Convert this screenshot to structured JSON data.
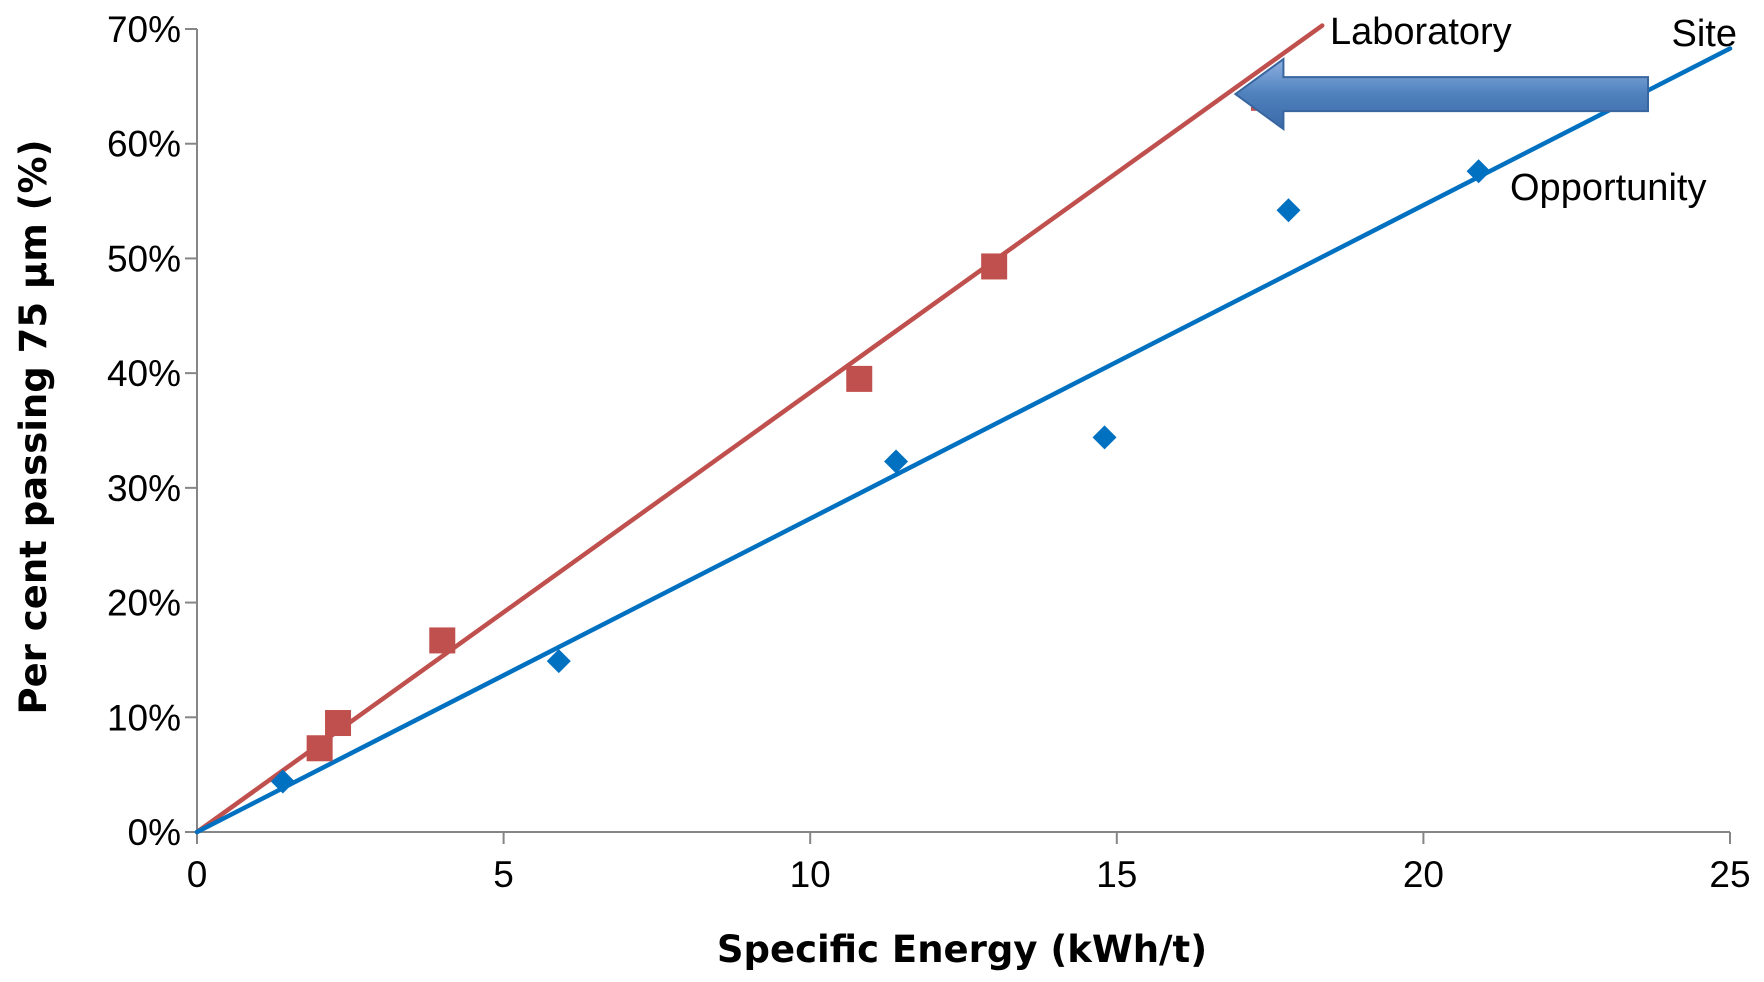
{
  "chart_data": {
    "type": "scatter",
    "xlabel": "Specific Energy (kWh/t)",
    "ylabel": "Per cent passing 75 µm (%)",
    "xlim": [
      0,
      25
    ],
    "ylim": [
      0,
      0.7
    ],
    "x_ticks": [
      "0",
      "5",
      "10",
      "15",
      "20",
      "25"
    ],
    "y_ticks": [
      "0%",
      "10%",
      "20%",
      "30%",
      "40%",
      "50%",
      "60%",
      "70%"
    ],
    "grid": false,
    "series": [
      {
        "name": "Laboratory",
        "marker": "square",
        "color": "#c0504d",
        "points": [
          [
            2.0,
            0.073
          ],
          [
            2.3,
            0.095
          ],
          [
            4.0,
            0.167
          ],
          [
            10.8,
            0.395
          ],
          [
            13.0,
            0.493
          ],
          [
            17.4,
            0.64
          ]
        ],
        "trendline": {
          "x": [
            0,
            18.35
          ],
          "y": [
            0,
            0.703
          ]
        }
      },
      {
        "name": "Site",
        "marker": "diamond",
        "color": "#0070c0",
        "points": [
          [
            1.4,
            0.044
          ],
          [
            5.9,
            0.149
          ],
          [
            11.4,
            0.323
          ],
          [
            14.8,
            0.344
          ],
          [
            17.8,
            0.542
          ],
          [
            20.9,
            0.576
          ]
        ],
        "trendline": {
          "x": [
            0,
            25
          ],
          "y": [
            0,
            0.683
          ]
        }
      }
    ],
    "annotations": {
      "laboratory": "Laboratory",
      "site": "Site",
      "opportunity": "Opportunity",
      "arrow": {
        "from": [
          23.5,
          0.645
        ],
        "to": [
          17.0,
          0.645
        ],
        "color": "#4f81bd"
      }
    }
  }
}
